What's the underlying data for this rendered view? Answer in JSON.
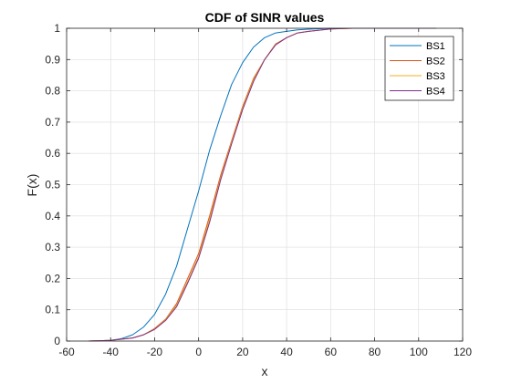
{
  "chart_data": {
    "type": "line",
    "title": "CDF of SINR values",
    "xlabel": "x",
    "ylabel": "F(x)",
    "xlim": [
      -60,
      120
    ],
    "ylim": [
      0,
      1
    ],
    "xticks": [
      -60,
      -40,
      -20,
      0,
      20,
      40,
      60,
      80,
      100,
      120
    ],
    "yticks": [
      0,
      0.1,
      0.2,
      0.3,
      0.4,
      0.5,
      0.6,
      0.7,
      0.8,
      0.9,
      1
    ],
    "grid": true,
    "legend_position": "top-right",
    "series": [
      {
        "name": "BS1",
        "color": "#0072BD",
        "x": [
          -50,
          -40,
          -35,
          -30,
          -25,
          -20,
          -15,
          -10,
          -5,
          0,
          5,
          10,
          15,
          20,
          25,
          30,
          35,
          40,
          45,
          50,
          60,
          70,
          80,
          90,
          100,
          108
        ],
        "y": [
          0,
          0.002,
          0.008,
          0.02,
          0.045,
          0.085,
          0.15,
          0.24,
          0.36,
          0.48,
          0.61,
          0.72,
          0.82,
          0.89,
          0.94,
          0.97,
          0.985,
          0.99,
          0.995,
          0.997,
          1,
          1,
          1,
          1,
          1,
          1
        ]
      },
      {
        "name": "BS2",
        "color": "#D95319",
        "x": [
          -50,
          -40,
          -30,
          -25,
          -20,
          -15,
          -10,
          -5,
          0,
          5,
          10,
          15,
          20,
          25,
          30,
          35,
          40,
          45,
          50,
          60,
          70,
          80,
          90,
          100,
          108
        ],
        "y": [
          0,
          0.002,
          0.01,
          0.02,
          0.04,
          0.07,
          0.12,
          0.2,
          0.28,
          0.4,
          0.53,
          0.64,
          0.75,
          0.84,
          0.9,
          0.95,
          0.97,
          0.985,
          0.99,
          0.998,
          1,
          1,
          1,
          1,
          1
        ]
      },
      {
        "name": "BS3",
        "color": "#EDB120",
        "x": [
          -50,
          -40,
          -30,
          -25,
          -20,
          -15,
          -10,
          -5,
          0,
          5,
          10,
          15,
          20,
          25,
          30,
          35,
          40,
          45,
          50,
          60,
          70,
          80,
          90,
          100,
          108
        ],
        "y": [
          0,
          0.002,
          0.01,
          0.02,
          0.038,
          0.068,
          0.115,
          0.19,
          0.27,
          0.39,
          0.52,
          0.635,
          0.745,
          0.835,
          0.9,
          0.948,
          0.97,
          0.985,
          0.99,
          0.998,
          1,
          1,
          1,
          1,
          1
        ]
      },
      {
        "name": "BS4",
        "color": "#7E2F8E",
        "x": [
          -50,
          -40,
          -30,
          -25,
          -20,
          -15,
          -10,
          -5,
          0,
          5,
          10,
          15,
          20,
          25,
          30,
          35,
          40,
          45,
          50,
          60,
          70,
          80,
          90,
          100,
          108
        ],
        "y": [
          0,
          0.002,
          0.01,
          0.02,
          0.037,
          0.066,
          0.11,
          0.185,
          0.265,
          0.38,
          0.515,
          0.63,
          0.74,
          0.83,
          0.9,
          0.947,
          0.97,
          0.985,
          0.99,
          0.998,
          1,
          1,
          1,
          1,
          1
        ]
      }
    ]
  }
}
